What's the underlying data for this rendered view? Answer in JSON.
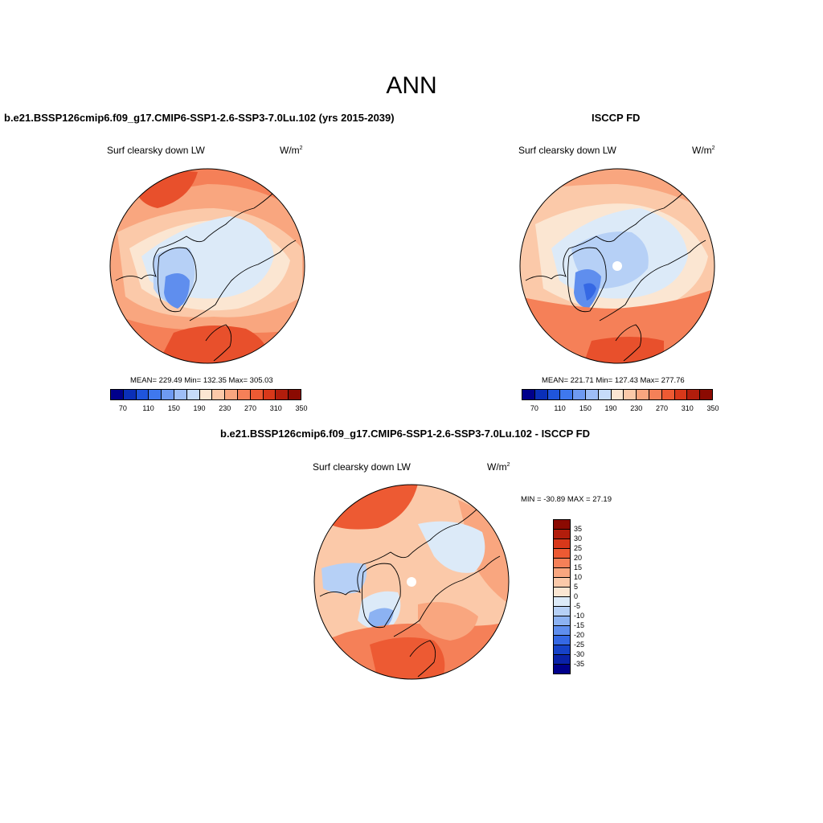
{
  "title": "ANN",
  "panels": {
    "model": {
      "title": "b.e21.BSSP126cmip6.f09_g17.CMIP6-SSP1-2.6-SSP3-7.0Lu.102 (yrs 2015-2039)",
      "variable": "Surf clearsky down LW",
      "units": "W/m",
      "units_exp": "2",
      "stats": "MEAN= 229.49  Min= 132.35  Max= 305.03"
    },
    "obs": {
      "title": "ISCCP FD",
      "variable": "Surf clearsky down LW",
      "units": "W/m",
      "units_exp": "2",
      "stats": "MEAN= 221.71  Min= 127.43  Max= 277.76"
    },
    "diff": {
      "title": "b.e21.BSSP126cmip6.f09_g17.CMIP6-SSP1-2.6-SSP3-7.0Lu.102 - ISCCP FD",
      "variable": "Surf clearsky down LW",
      "units": "W/m",
      "units_exp": "2",
      "stats": "MIN = -30.89 MAX =  27.19"
    }
  },
  "colorbar_abs": {
    "labels": [
      "70",
      "110",
      "150",
      "190",
      "230",
      "270",
      "310",
      "350"
    ],
    "colors": [
      "#00008b",
      "#0a2fb8",
      "#1f55dc",
      "#3f78ee",
      "#6e9af2",
      "#9ebef6",
      "#c6dcfa",
      "#fbe6d2",
      "#fbc9a9",
      "#f9a67f",
      "#f58058",
      "#ed5a33",
      "#d8381a",
      "#b21d0c",
      "#8b0a02"
    ]
  },
  "colorbar_diff": {
    "labels": [
      "35",
      "30",
      "25",
      "20",
      "15",
      "10",
      "5",
      "0",
      "-5",
      "-10",
      "-15",
      "-20",
      "-25",
      "-30",
      "-35"
    ],
    "colors": [
      "#8b0a02",
      "#b21d0c",
      "#d8381a",
      "#ed5a33",
      "#f58058",
      "#f9a67f",
      "#fbc9a9",
      "#fbe6d2",
      "#dceaf8",
      "#b6d0f6",
      "#8cb2f2",
      "#5f8eee",
      "#3568e4",
      "#1642c8",
      "#0a22a8",
      "#00008b"
    ]
  },
  "map_colors": {
    "warm_dark": "#e8502c",
    "warm_mid": "#f58058",
    "warm_light": "#f9a67f",
    "warm_pale": "#fbc9a9",
    "cream": "#fbe6d2",
    "cool_pale": "#dceaf8",
    "cool_light": "#b6d0f6",
    "cool_mid": "#8cb2f2",
    "cool_dark": "#5f8eee",
    "cool_deep": "#3568e4"
  }
}
